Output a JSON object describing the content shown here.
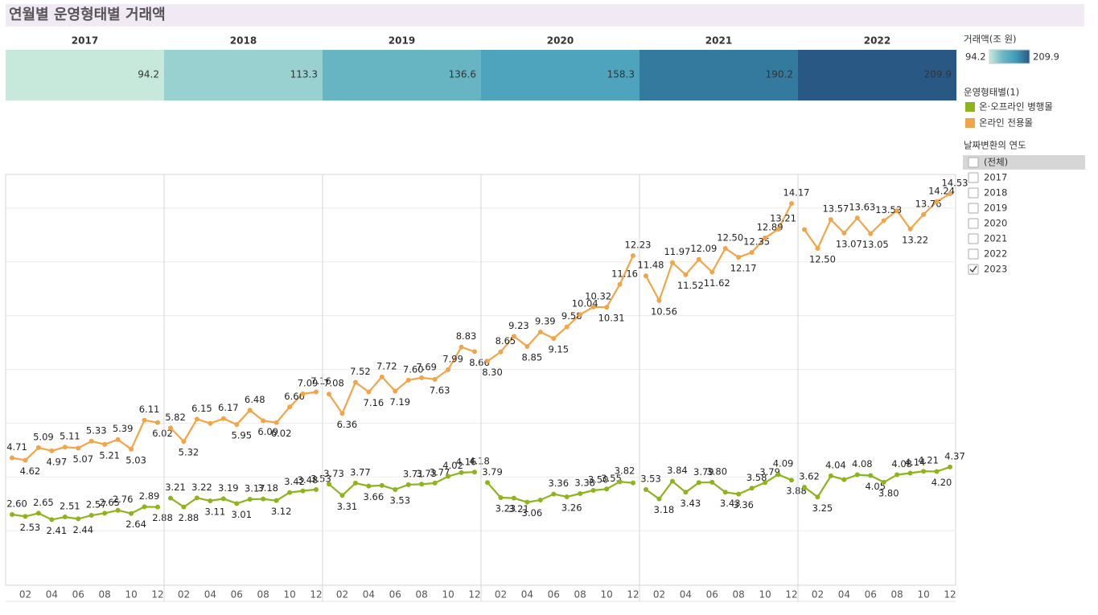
{
  "chart_data": {
    "type": "line",
    "title": "연월별 운영형태별 거래액",
    "panels": [
      "2017",
      "2018",
      "2019",
      "2020",
      "2021",
      "2022"
    ],
    "panel_values": [
      94.2,
      113.3,
      136.6,
      158.3,
      190.2,
      209.9
    ],
    "color_legend": {
      "title": "거래액(조 원)",
      "min": 94.2,
      "max": 209.9,
      "colors": [
        "#c6e9dc",
        "#6cb8c4",
        "#3d9ab8",
        "#2a5885"
      ]
    },
    "categories": [
      null,
      "02",
      null,
      "04",
      null,
      "06",
      null,
      "08",
      null,
      "10",
      null,
      "12"
    ],
    "legend_title": "운영형태별(1)",
    "series": [
      {
        "name": "온·오프라인 병행몰",
        "color": "#8db31d",
        "values": [
          [
            2.6,
            2.53,
            2.65,
            2.41,
            2.51,
            2.44,
            2.57,
            2.65,
            2.76,
            2.64,
            2.89,
            2.88
          ],
          [
            3.21,
            2.88,
            3.22,
            3.11,
            3.19,
            3.01,
            3.17,
            3.18,
            3.12,
            3.42,
            3.48,
            3.53
          ],
          [
            3.73,
            3.31,
            3.77,
            3.66,
            3.68,
            3.53,
            3.71,
            3.73,
            3.77,
            4.02,
            4.16,
            4.18
          ],
          [
            3.79,
            3.23,
            3.21,
            3.06,
            3.14,
            3.36,
            3.26,
            3.38,
            3.5,
            3.55,
            3.82,
            3.78
          ],
          [
            3.53,
            3.18,
            3.84,
            3.43,
            3.79,
            3.8,
            3.43,
            3.36,
            3.58,
            3.79,
            4.09,
            3.88
          ],
          [
            3.62,
            3.25,
            4.04,
            3.9,
            4.08,
            4.05,
            3.8,
            4.08,
            4.14,
            4.21,
            4.2,
            4.37
          ]
        ],
        "value_labels": [
          [
            "2.60",
            "2.53",
            "2.65",
            "2.41",
            "2.51",
            "2.44",
            "2.57",
            "2.65",
            "2.76",
            "2.64",
            "2.89",
            "2.88"
          ],
          [
            "3.21",
            "2.88",
            "3.22",
            "3.11",
            "3.19",
            "3.01",
            "3.17",
            "3.18",
            "3.12",
            "3.42",
            "3.48",
            "3.53"
          ],
          [
            "3.73",
            "3.31",
            "3.77",
            "3.66",
            null,
            "3.53",
            "3.71",
            "3.73",
            "3.77",
            "4.02",
            "4.16",
            "4.18"
          ],
          [
            "3.79",
            "3.23",
            "3.21",
            "3.06",
            null,
            "3.36",
            "3.26",
            "3.38",
            "3.50",
            "3.55",
            "3.82",
            null
          ],
          [
            "3.53",
            "3.18",
            "3.84",
            "3.43",
            "3.79",
            "3.80",
            "3.43",
            "3.36",
            "3.58",
            "3.79",
            "4.09",
            "3.88"
          ],
          [
            "3.62",
            "3.25",
            "4.04",
            null,
            "4.08",
            "4.05",
            "3.80",
            "4.08",
            "4.14",
            "4.21",
            "4.20",
            "4.37"
          ]
        ]
      },
      {
        "name": "온라인 전용몰",
        "color": "#f2a548",
        "values": [
          [
            4.71,
            4.62,
            5.09,
            4.97,
            5.11,
            5.07,
            5.33,
            5.21,
            5.39,
            5.03,
            6.11,
            6.02
          ],
          [
            5.82,
            5.32,
            6.15,
            5.99,
            6.17,
            5.95,
            6.48,
            6.09,
            6.02,
            6.6,
            7.09,
            7.16
          ],
          [
            7.08,
            6.36,
            7.52,
            7.16,
            7.72,
            7.19,
            7.6,
            7.69,
            7.63,
            7.99,
            8.83,
            8.66
          ],
          [
            8.3,
            8.65,
            9.23,
            8.85,
            9.39,
            9.15,
            9.58,
            10.04,
            10.32,
            10.31,
            11.16,
            12.23
          ],
          [
            11.48,
            10.56,
            11.97,
            11.52,
            12.09,
            11.62,
            12.5,
            12.17,
            12.35,
            12.89,
            13.21,
            14.17
          ],
          [
            13.2,
            12.5,
            13.57,
            13.07,
            13.63,
            13.05,
            13.53,
            13.9,
            13.22,
            13.76,
            14.24,
            14.53
          ]
        ],
        "value_labels": [
          [
            "4.71",
            "4.62",
            "5.09",
            "4.97",
            "5.11",
            "5.07",
            "5.33",
            "5.21",
            "5.39",
            "5.03",
            "6.11",
            "6.02"
          ],
          [
            "5.82",
            "5.32",
            "6.15",
            null,
            "6.17",
            "5.95",
            "6.48",
            "6.09",
            "6.02",
            "6.60",
            "7.09",
            "7.16"
          ],
          [
            "7.08",
            "6.36",
            "7.52",
            "7.16",
            "7.72",
            "7.19",
            "7.60",
            "7.69",
            "7.63",
            "7.99",
            "8.83",
            "8.66"
          ],
          [
            "8.30",
            "8.65",
            "9.23",
            "8.85",
            "9.39",
            "9.15",
            "9.58",
            "10.04",
            "10.32",
            "10.31",
            "11.16",
            "12.23"
          ],
          [
            "11.48",
            "10.56",
            "11.97",
            "11.52",
            "12.09",
            "11.62",
            "12.50",
            "12.17",
            "12.35",
            "12.89",
            "13.21",
            "14.17"
          ],
          [
            null,
            "12.50",
            "13.57",
            "13.07",
            "13.63",
            "13.05",
            "13.53",
            null,
            "13.22",
            "13.76",
            "14.24",
            "14.53"
          ]
        ]
      }
    ],
    "ylim": [
      0,
      15.25
    ],
    "yticks": [
      2,
      4,
      6,
      8,
      10,
      12,
      14
    ],
    "grid": true,
    "filter": {
      "title": "날짜변환의 연도",
      "options": [
        "(전체)",
        "2017",
        "2018",
        "2019",
        "2020",
        "2021",
        "2022",
        "2023"
      ],
      "checked": [
        false,
        false,
        false,
        false,
        false,
        false,
        false,
        true
      ]
    }
  }
}
